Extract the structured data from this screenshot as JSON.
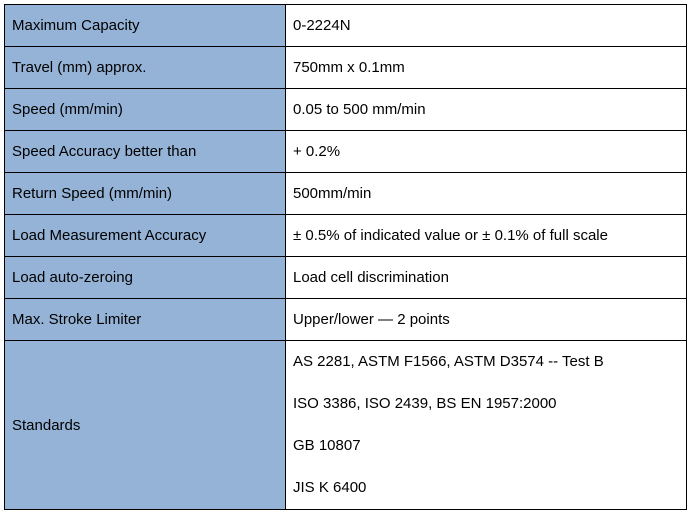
{
  "table": {
    "rows": [
      [
        "Maximum Capacity",
        "0-2224N"
      ],
      [
        "Travel (mm) approx.",
        "750mm x 0.1mm"
      ],
      [
        "Speed (mm/min)",
        "0.05 to 500 mm/min"
      ],
      [
        "Speed Accuracy better than",
        "+ 0.2%"
      ],
      [
        "Return Speed (mm/min)",
        "500mm/min"
      ],
      [
        "Load Measurement Accuracy",
        "± 0.5% of indicated value or ± 0.1% of full scale"
      ],
      [
        "Load auto-zeroing",
        "Load cell discrimination"
      ],
      [
        "Max. Stroke Limiter",
        "Upper/lower — 2 points"
      ],
      [
        "Standards",
        [
          "AS 2281, ASTM F1566, ASTM D3574 -- Test B",
          "ISO 3386, ISO 2439, BS EN 1957:2000",
          "GB 10807",
          "JIS K 6400"
        ]
      ]
    ]
  }
}
